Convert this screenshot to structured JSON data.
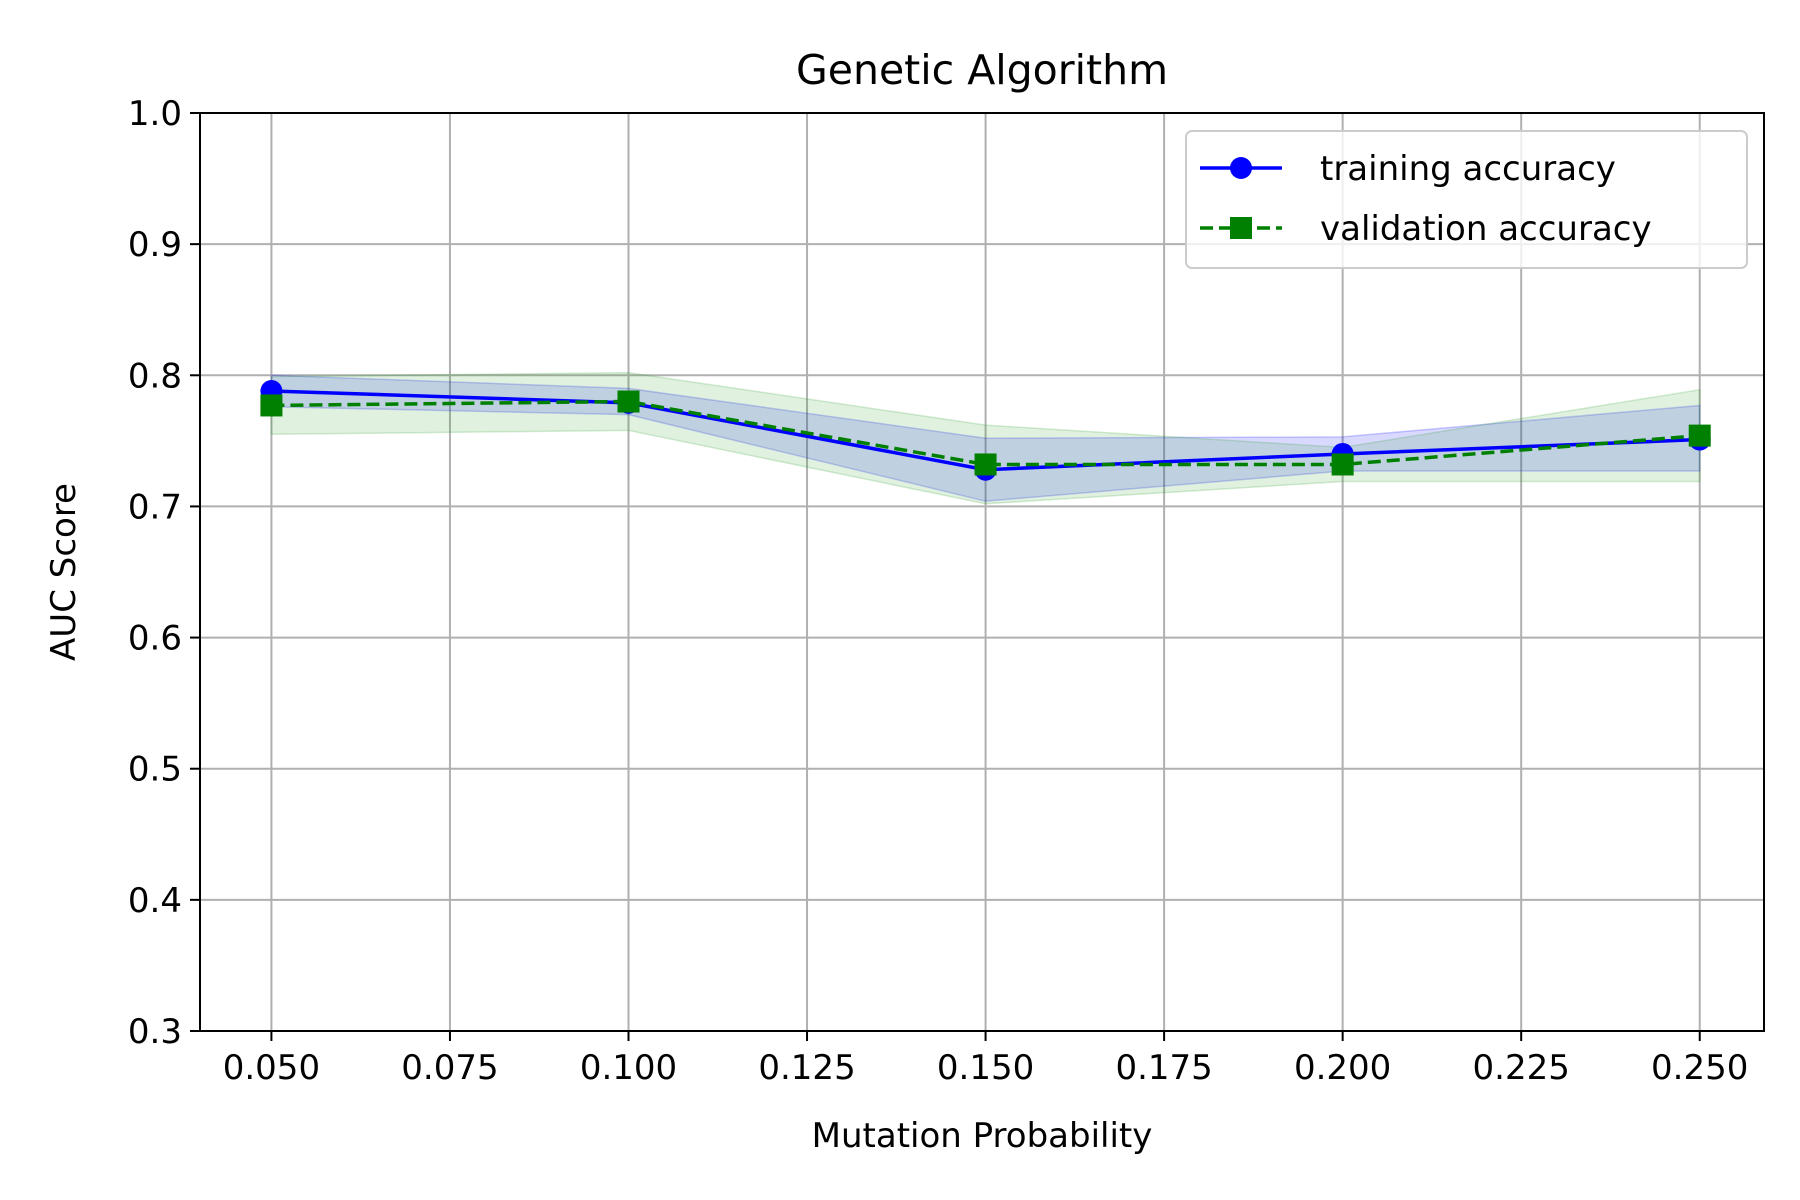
{
  "chart_data": {
    "type": "line",
    "title": "Genetic Algorithm",
    "xlabel": "Mutation Probability",
    "ylabel": "AUC Score",
    "xlim": [
      0.04,
      0.259
    ],
    "ylim": [
      0.3,
      1.0
    ],
    "x": [
      0.05,
      0.1,
      0.15,
      0.2,
      0.25
    ],
    "xticks": [
      "0.050",
      "0.075",
      "0.100",
      "0.125",
      "0.150",
      "0.175",
      "0.200",
      "0.225",
      "0.250"
    ],
    "xtick_values": [
      0.05,
      0.075,
      0.1,
      0.125,
      0.15,
      0.175,
      0.2,
      0.225,
      0.25
    ],
    "yticks": [
      "0.3",
      "0.4",
      "0.5",
      "0.6",
      "0.7",
      "0.8",
      "0.9",
      "1.0"
    ],
    "ytick_values": [
      0.3,
      0.4,
      0.5,
      0.6,
      0.7,
      0.8,
      0.9,
      1.0
    ],
    "grid": true,
    "legend_position": "top-right",
    "series": [
      {
        "name": "training accuracy",
        "values": [
          0.788,
          0.779,
          0.728,
          0.74,
          0.751
        ],
        "band_lower": [
          0.776,
          0.77,
          0.704,
          0.727,
          0.727
        ],
        "band_upper": [
          0.8,
          0.79,
          0.752,
          0.753,
          0.777
        ],
        "color": "#0000ff",
        "band_color": "#0000ff",
        "line_style": "solid",
        "marker": "circle"
      },
      {
        "name": "validation accuracy",
        "values": [
          0.777,
          0.78,
          0.732,
          0.732,
          0.754
        ],
        "band_lower": [
          0.755,
          0.758,
          0.702,
          0.719,
          0.719
        ],
        "band_upper": [
          0.799,
          0.802,
          0.762,
          0.745,
          0.789
        ],
        "color": "#008000",
        "band_color": "#2ca02c",
        "line_style": "dashed",
        "marker": "square"
      }
    ]
  }
}
